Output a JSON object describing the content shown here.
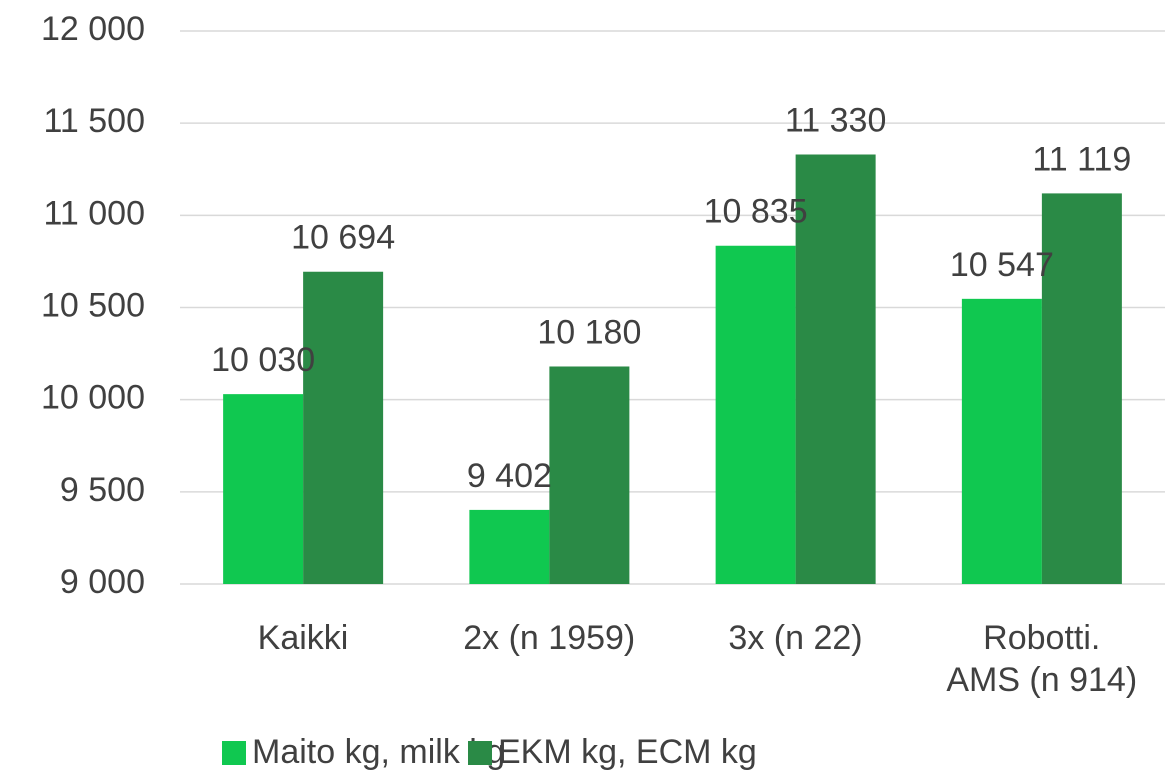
{
  "chart_data": {
    "type": "bar",
    "categories": [
      "Kaikki",
      "2x (n 1959)",
      "3x (n 22)",
      "Robotti.\nAMS (n 914)"
    ],
    "series": [
      {
        "name": "Maito kg, milk kg",
        "color": "#10c850",
        "values": [
          10030,
          9402,
          10835,
          10547
        ],
        "value_labels": [
          "10 030",
          "9 402",
          "10 835",
          "10 547"
        ]
      },
      {
        "name": "EKM kg, ECM kg",
        "color": "#2a8a46",
        "values": [
          10694,
          10180,
          11330,
          11119
        ],
        "value_labels": [
          "10 694",
          "10 180",
          "11 330",
          "11 119"
        ]
      }
    ],
    "ylim": [
      9000,
      12000
    ],
    "yticks": [
      {
        "value": 9000,
        "label": "9 000"
      },
      {
        "value": 9500,
        "label": "9 500"
      },
      {
        "value": 10000,
        "label": "10 000"
      },
      {
        "value": 10500,
        "label": "10 500"
      },
      {
        "value": 11000,
        "label": "11 000"
      },
      {
        "value": 11500,
        "label": "11 500"
      },
      {
        "value": 12000,
        "label": "12 000"
      }
    ],
    "grid": true,
    "legend": "bottom"
  }
}
